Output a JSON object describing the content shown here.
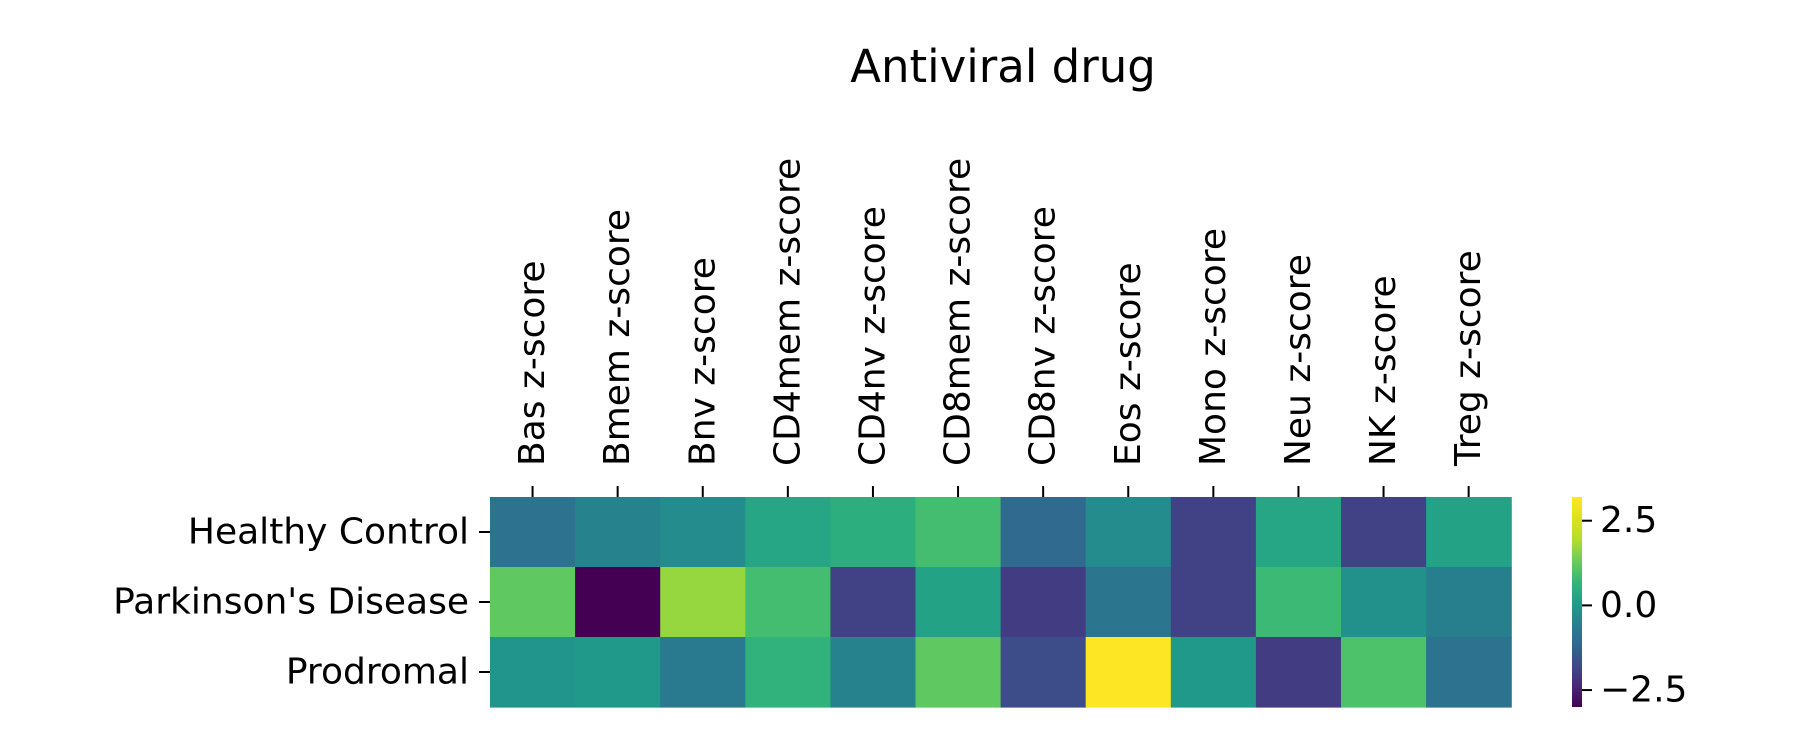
{
  "chart_data": {
    "type": "heatmap",
    "title": "Antiviral drug",
    "columns": [
      "Bas z-score",
      "Bmem z-score",
      "Bnv z-score",
      "CD4mem z-score",
      "CD4nv z-score",
      "CD8mem z-score",
      "CD8nv z-score",
      "Eos z-score",
      "Mono z-score",
      "Neu z-score",
      "NK z-score",
      "Treg z-score"
    ],
    "rows": [
      "Healthy Control",
      "Parkinson's Disease",
      "Prodromal"
    ],
    "values": [
      [
        -0.9,
        -0.5,
        -0.3,
        0.3,
        0.5,
        0.9,
        -1.1,
        -0.3,
        -1.9,
        0.3,
        -1.9,
        0.2
      ],
      [
        1.2,
        -3.0,
        1.7,
        0.9,
        -1.9,
        0.2,
        -2.0,
        -0.8,
        -1.9,
        0.8,
        -0.2,
        -0.6
      ],
      [
        -0.1,
        0.0,
        -0.7,
        0.6,
        -0.5,
        1.2,
        -1.7,
        3.2,
        0.0,
        -2.0,
        1.0,
        -0.9
      ]
    ],
    "vmin": -3.0,
    "vmax": 3.2,
    "colormap": "viridis",
    "colorbar": {
      "ticks": [
        2.5,
        0.0,
        -2.5
      ],
      "tick_labels": [
        "2.5",
        "0.0",
        "−2.5"
      ],
      "placement": "right"
    }
  }
}
